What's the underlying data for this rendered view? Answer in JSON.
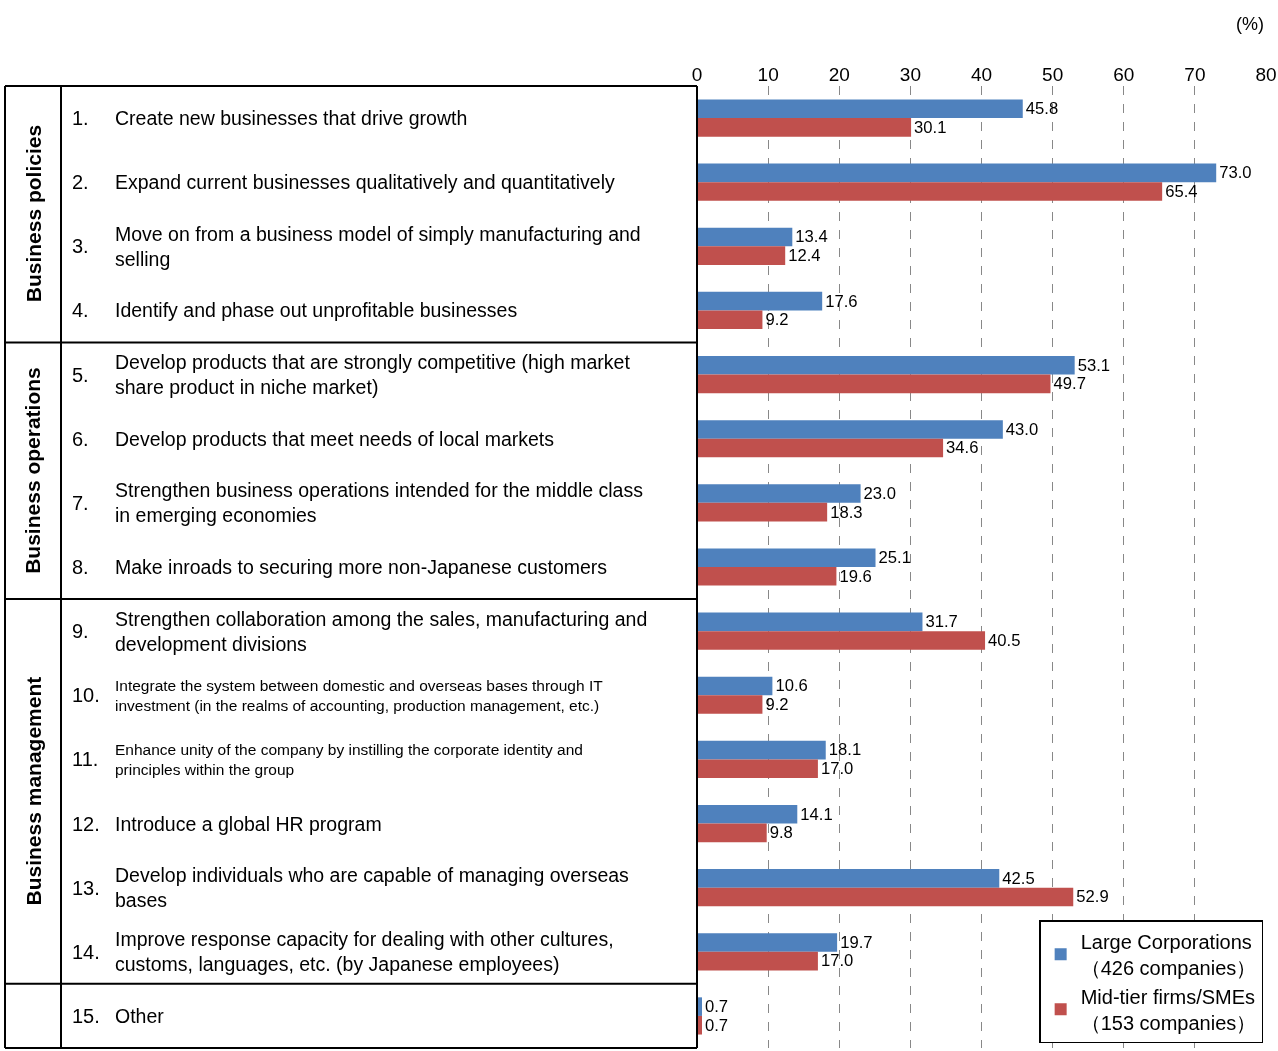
{
  "chart_data": {
    "type": "bar",
    "orientation": "horizontal",
    "categories": [
      "1. Create new businesses that drive growth",
      "2. Expand current businesses qualitatively and quantitatively",
      "3. Move on from a business model of simply manufacturing and selling",
      "4. Identify and phase out unprofitable businesses",
      "5. Develop products that are strongly competitive (high market share product in niche market)",
      "6. Develop products that meet needs of local markets",
      "7. Strengthen business operations intended for the middle class in emerging economies",
      "8. Make inroads to securing more non-Japanese customers",
      "9. Strengthen collaboration among the sales, manufacturing and development divisions",
      "10. Integrate the system between domestic and overseas bases through IT investment (in the realms of accounting, production management, etc.)",
      "11. Enhance unity of the company by instilling the corporate identity and principles within the group",
      "12. Introduce a global HR program",
      "13. Develop individuals who are capable of managing overseas bases",
      "14. Improve response capacity for dealing with other cultures, customs, languages, etc. (by Japanese employees)",
      "15. Other"
    ],
    "series": [
      {
        "name": "Large Corporations\n（426 companies）",
        "color": "#4f81bd",
        "values": [
          45.8,
          73.0,
          13.4,
          17.6,
          53.1,
          43.0,
          23.0,
          25.1,
          31.7,
          10.6,
          18.1,
          14.1,
          42.5,
          19.7,
          0.7
        ],
        "value_labels": [
          "45.8",
          "73.0",
          "13.4",
          "17.6",
          "53.1",
          "43.0",
          "23.0",
          "25.1",
          "31.7",
          "10.6",
          "18.1",
          "14.1",
          "42.5",
          "19.7",
          "0.7"
        ]
      },
      {
        "name": "Mid-tier firms/SMEs\n（153 companies）",
        "color": "#c0504d",
        "values": [
          30.1,
          65.4,
          12.4,
          9.2,
          49.7,
          34.6,
          18.3,
          19.6,
          40.5,
          9.2,
          17.0,
          9.8,
          52.9,
          17.0,
          0.7
        ],
        "value_labels": [
          "30.1",
          "65.4",
          "12.4",
          "9.2",
          "49.7",
          "34.6",
          "18.3",
          "19.6",
          "40.5",
          "9.2",
          "17.0",
          "9.8",
          "52.9",
          "17.0",
          "0.7"
        ]
      }
    ],
    "xlim": [
      0,
      80
    ],
    "xticks": [
      0,
      10,
      20,
      30,
      40,
      50,
      60,
      70,
      80
    ],
    "grid": "x",
    "legend": "bottom right",
    "annotations": [
      "Business policies",
      "Business operations",
      "Business management",
      "(%)"
    ]
  }
}
